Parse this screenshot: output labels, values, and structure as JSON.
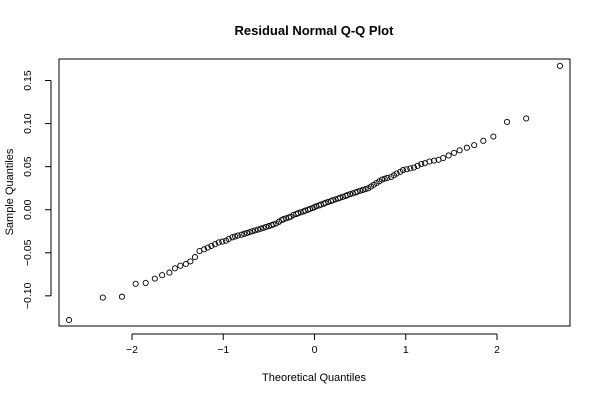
{
  "chart_data": {
    "type": "scatter",
    "title": "Residual Normal Q-Q Plot",
    "xlabel": "Theoretical Quantiles",
    "ylabel": "Sample Quantiles",
    "xlim": [
      -2.8,
      2.8
    ],
    "ylim": [
      -0.135,
      0.175
    ],
    "xticks": [
      -2,
      -1,
      0,
      1,
      2
    ],
    "xtick_labels": [
      "−2",
      "−1",
      "0",
      "1",
      "2"
    ],
    "yticks": [
      -0.1,
      -0.05,
      0.0,
      0.05,
      0.1,
      0.15
    ],
    "ytick_labels": [
      "−0.10",
      "−0.05",
      "0.00",
      "0.05",
      "0.10",
      "0.15"
    ],
    "grid": false,
    "marker": "open-circle",
    "series": [
      {
        "x": [
          -2.69,
          -2.32,
          -2.11,
          -1.96,
          -1.85,
          -1.75,
          -1.67,
          -1.59,
          -1.53,
          -1.47,
          -1.41,
          -1.36,
          -1.31,
          -1.26,
          -1.21,
          -1.17,
          -1.13,
          -1.09,
          -1.05,
          -1.01,
          -0.97,
          -0.94,
          -0.9,
          -0.87,
          -0.84,
          -0.8,
          -0.77,
          -0.74,
          -0.71,
          -0.68,
          -0.65,
          -0.62,
          -0.59,
          -0.56,
          -0.53,
          -0.5,
          -0.47,
          -0.45,
          -0.42,
          -0.39,
          -0.36,
          -0.34,
          -0.31,
          -0.28,
          -0.26,
          -0.23,
          -0.2,
          -0.18,
          -0.15,
          -0.12,
          -0.1,
          -0.07,
          -0.05,
          -0.02,
          0.0,
          0.02,
          0.05,
          0.07,
          0.1,
          0.12,
          0.15,
          0.18,
          0.2,
          0.23,
          0.26,
          0.28,
          0.31,
          0.34,
          0.36,
          0.39,
          0.42,
          0.45,
          0.47,
          0.5,
          0.53,
          0.56,
          0.59,
          0.62,
          0.65,
          0.68,
          0.71,
          0.74,
          0.77,
          0.8,
          0.84,
          0.87,
          0.9,
          0.94,
          0.97,
          1.01,
          1.05,
          1.09,
          1.13,
          1.17,
          1.21,
          1.26,
          1.31,
          1.36,
          1.41,
          1.47,
          1.53,
          1.59,
          1.67,
          1.75,
          1.85,
          1.96,
          2.11,
          2.32,
          2.69
        ],
        "y": [
          -0.128,
          -0.102,
          -0.101,
          -0.086,
          -0.085,
          -0.08,
          -0.076,
          -0.073,
          -0.068,
          -0.065,
          -0.063,
          -0.06,
          -0.055,
          -0.048,
          -0.046,
          -0.044,
          -0.042,
          -0.04,
          -0.038,
          -0.037,
          -0.036,
          -0.034,
          -0.032,
          -0.031,
          -0.03,
          -0.029,
          -0.028,
          -0.027,
          -0.026,
          -0.025,
          -0.024,
          -0.023,
          -0.022,
          -0.021,
          -0.02,
          -0.019,
          -0.018,
          -0.017,
          -0.016,
          -0.014,
          -0.012,
          -0.011,
          -0.01,
          -0.009,
          -0.008,
          -0.006,
          -0.005,
          -0.004,
          -0.003,
          -0.002,
          -0.001,
          0.0,
          0.001,
          0.002,
          0.003,
          0.004,
          0.005,
          0.006,
          0.007,
          0.008,
          0.009,
          0.01,
          0.011,
          0.012,
          0.013,
          0.014,
          0.015,
          0.016,
          0.017,
          0.018,
          0.019,
          0.02,
          0.021,
          0.022,
          0.023,
          0.024,
          0.025,
          0.027,
          0.029,
          0.031,
          0.033,
          0.035,
          0.036,
          0.037,
          0.038,
          0.04,
          0.042,
          0.044,
          0.046,
          0.047,
          0.048,
          0.049,
          0.051,
          0.053,
          0.054,
          0.056,
          0.057,
          0.058,
          0.06,
          0.063,
          0.066,
          0.069,
          0.072,
          0.075,
          0.08,
          0.085,
          0.102,
          0.106,
          0.167
        ]
      }
    ]
  }
}
